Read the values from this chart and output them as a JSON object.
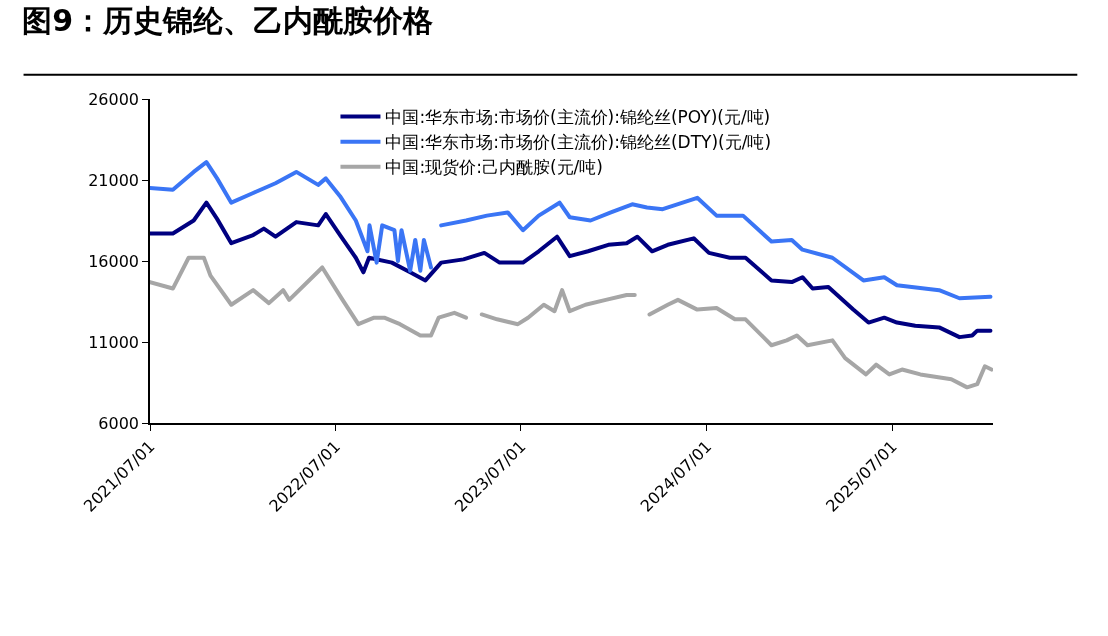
{
  "chart_data": {
    "type": "line",
    "title": "图9：历史锦纶、乙内酰胺价格",
    "xlim": [
      "2021-07-01",
      "2026-01-15"
    ],
    "xticks": [
      {
        "value": "2021-07-01",
        "label": "2021/07/01"
      },
      {
        "value": "2022-07-01",
        "label": "2022/07/01"
      },
      {
        "value": "2023-07-01",
        "label": "2023/07/01"
      },
      {
        "value": "2024-07-01",
        "label": "2024/07/01"
      },
      {
        "value": "2025-07-01",
        "label": "2025/07/01"
      }
    ],
    "ylim": [
      6000,
      26000
    ],
    "yticks": [
      6000,
      11000,
      16000,
      21000,
      26000
    ],
    "legend": "top",
    "marker": "none",
    "line_style": "solid",
    "series": [
      {
        "name": "中国:华东市场:市场价(主流价):锦纶丝(POY)(元/吨)",
        "color": "#000080",
        "x": [
          "2021-07-01",
          "2021-08-15",
          "2021-09-25",
          "2021-10-20",
          "2021-11-10",
          "2021-12-08",
          "2022-01-20",
          "2022-02-10",
          "2022-03-05",
          "2022-04-15",
          "2022-05-28",
          "2022-06-12",
          "2022-07-10",
          "2022-08-10",
          "2022-08-25",
          "2022-09-05",
          "2022-10-20",
          "2022-11-25",
          "2022-12-25",
          "2023-01-25",
          "2023-03-10",
          "2023-04-20",
          "2023-05-20",
          "2023-07-05",
          "2023-08-05",
          "2023-09-10",
          "2023-10-05",
          "2023-11-10",
          "2023-12-20",
          "2024-01-25",
          "2024-02-15",
          "2024-03-15",
          "2024-04-15",
          "2024-06-05",
          "2024-07-05",
          "2024-08-15",
          "2024-09-15",
          "2024-11-05",
          "2024-12-15",
          "2025-01-05",
          "2025-01-25",
          "2025-02-25",
          "2025-04-15",
          "2025-05-15",
          "2025-06-15",
          "2025-07-10",
          "2025-08-15",
          "2025-10-01",
          "2025-11-10",
          "2025-12-05",
          "2025-12-15",
          "2026-01-10"
        ],
        "values": [
          17700,
          17700,
          18500,
          19600,
          18600,
          17100,
          17600,
          18000,
          17500,
          18400,
          18200,
          18900,
          17600,
          16200,
          15300,
          16200,
          15900,
          15300,
          14800,
          15900,
          16100,
          16500,
          15900,
          15900,
          16600,
          17500,
          16300,
          16600,
          17000,
          17100,
          17500,
          16600,
          17000,
          17400,
          16500,
          16200,
          16200,
          14800,
          14700,
          15000,
          14300,
          14400,
          13000,
          12200,
          12500,
          12200,
          12000,
          11900,
          11300,
          11400,
          11700,
          11700
        ]
      },
      {
        "name": "中国:华东市场:市场价(主流价):锦纶丝(DTY)(元/吨)",
        "color": "#3a75f5",
        "x": [
          "2021-07-01",
          "2021-08-15",
          "2021-09-25",
          "2021-10-20",
          "2021-11-10",
          "2021-12-08",
          "2022-01-20",
          "2022-03-05",
          "2022-04-15",
          "2022-05-28",
          "2022-06-12",
          "2022-07-10",
          "2022-08-10",
          "2022-09-02",
          "2022-09-06",
          "2022-09-20",
          "2022-10-01",
          "2022-10-25",
          "2022-11-01",
          "2022-11-08",
          "2022-11-25",
          "2022-12-05",
          "2022-12-15",
          "2022-12-22",
          "2023-01-05",
          "2023-01-15",
          "2023-01-25",
          "2023-03-15",
          "2023-04-25",
          "2023-06-05",
          "2023-07-05",
          "2023-08-05",
          "2023-09-15",
          "2023-10-05",
          "2023-11-15",
          "2023-12-25",
          "2024-02-05",
          "2024-03-05",
          "2024-04-05",
          "2024-06-12",
          "2024-07-20",
          "2024-09-10",
          "2024-11-05",
          "2024-12-15",
          "2025-01-05",
          "2025-03-05",
          "2025-05-05",
          "2025-06-15",
          "2025-07-10",
          "2025-10-01",
          "2025-11-10",
          "2026-01-10"
        ],
        "values": [
          20500,
          20400,
          21500,
          22100,
          21100,
          19600,
          20200,
          20800,
          21500,
          20700,
          21100,
          20000,
          18500,
          16600,
          18200,
          15900,
          18200,
          17900,
          16000,
          17900,
          15400,
          17300,
          15400,
          17300,
          15600,
          null,
          18200,
          18500,
          18800,
          19000,
          17900,
          18800,
          19600,
          18700,
          18500,
          19000,
          19500,
          19300,
          19200,
          19900,
          18800,
          18800,
          17200,
          17300,
          16700,
          16200,
          14800,
          15000,
          14500,
          14200,
          13700,
          13800
        ]
      },
      {
        "name": "中国:现货价:己内酰胺(元/吨)",
        "color": "#a6a6a6",
        "x": [
          "2021-07-01",
          "2021-08-15",
          "2021-09-15",
          "2021-10-15",
          "2021-10-28",
          "2021-12-08",
          "2022-01-20",
          "2022-02-20",
          "2022-03-20",
          "2022-04-01",
          "2022-06-05",
          "2022-07-15",
          "2022-08-15",
          "2022-09-15",
          "2022-10-05",
          "2022-11-05",
          "2022-12-15",
          "2023-01-05",
          "2023-01-20",
          "2023-02-20",
          "2023-03-15",
          "2023-03-25",
          "2023-04-15",
          "2023-05-15",
          "2023-06-25",
          "2023-07-15",
          "2023-08-15",
          "2023-09-05",
          "2023-09-20",
          "2023-10-05",
          "2023-11-05",
          "2023-12-15",
          "2024-01-25",
          "2024-02-10",
          "2024-02-20",
          "2024-03-10",
          "2024-04-15",
          "2024-05-05",
          "2024-06-12",
          "2024-07-20",
          "2024-08-25",
          "2024-09-15",
          "2024-11-05",
          "2024-12-05",
          "2024-12-25",
          "2025-01-15",
          "2025-03-05",
          "2025-03-30",
          "2025-05-10",
          "2025-05-30",
          "2025-06-25",
          "2025-07-20",
          "2025-08-25",
          "2025-10-25",
          "2025-11-25",
          "2025-12-15",
          "2025-12-30",
          "2026-01-12"
        ],
        "values": [
          14700,
          14300,
          16200,
          16200,
          15100,
          13300,
          14200,
          13400,
          14200,
          13600,
          15600,
          13600,
          12100,
          12500,
          12500,
          12100,
          11400,
          11400,
          12500,
          12800,
          12500,
          null,
          12700,
          12400,
          12100,
          12500,
          13300,
          12900,
          14200,
          12900,
          13300,
          13600,
          13900,
          13900,
          null,
          12700,
          13300,
          13600,
          13000,
          13100,
          12400,
          12400,
          10800,
          11100,
          11400,
          10800,
          11100,
          10000,
          9000,
          9600,
          9000,
          9300,
          9000,
          8700,
          8200,
          8400,
          9500,
          9300
        ]
      }
    ]
  }
}
